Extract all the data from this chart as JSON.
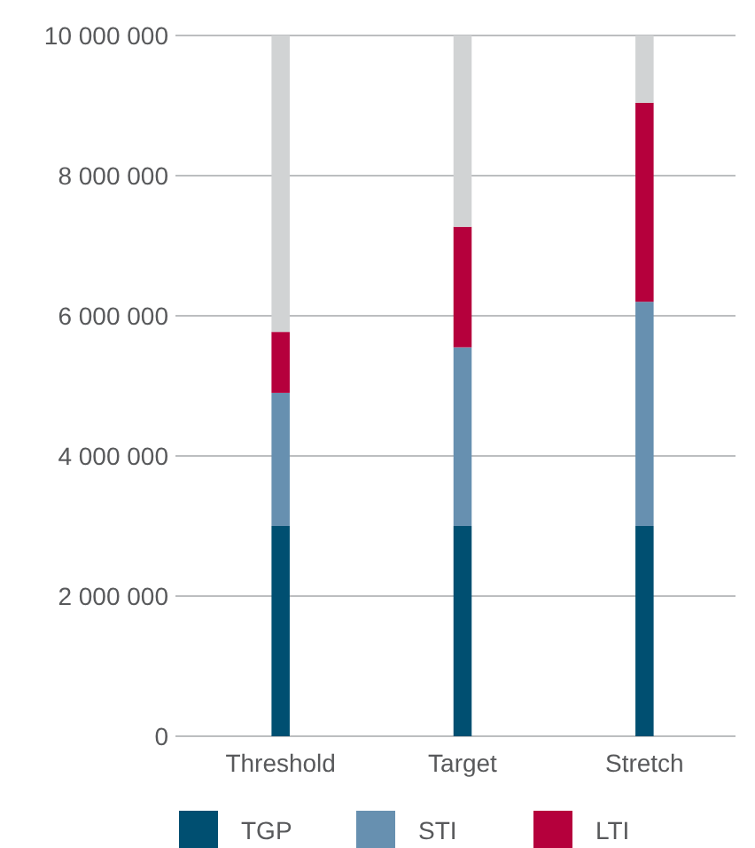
{
  "chart_data": {
    "type": "bar",
    "stacked": true,
    "categories": [
      "Threshold",
      "Target",
      "Stretch"
    ],
    "series": [
      {
        "name": "TGP",
        "color": "#004f71",
        "values": [
          3000000,
          3000000,
          3000000
        ]
      },
      {
        "name": "STI",
        "color": "#6790b0",
        "values": [
          1900000,
          2550000,
          3200000
        ]
      },
      {
        "name": "LTI",
        "color": "#b5003c",
        "values": [
          870000,
          1720000,
          2840000
        ]
      },
      {
        "color": "#d1d3d4",
        "values": [
          4230000,
          2730000,
          960000
        ]
      }
    ],
    "ylim": [
      0,
      10000000
    ],
    "yticks": [
      0,
      {
        "value": 2000000,
        "label": "2 000 000"
      },
      {
        "value": 4000000,
        "label": "4 000 000"
      },
      {
        "value": 6000000,
        "label": "6 000 000"
      },
      {
        "value": 8000000,
        "label": "8 000 000"
      },
      {
        "value": 10000000,
        "label": "10 000 000"
      }
    ],
    "grid": "y",
    "legend": "bottom"
  }
}
